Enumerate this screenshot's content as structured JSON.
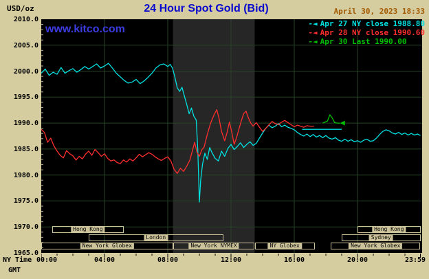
{
  "colors": {
    "background": "#D5CC9F",
    "plot_bg": "#000000",
    "band": "#262626",
    "grid": "#294429",
    "tick_beige": "#B9B08A",
    "session_beige": "#CCC39A",
    "title_blue": "#0A0ACF",
    "date_orange": "#A35A00",
    "watermark_blue": "#3B3BE0",
    "axis_black": "#000000"
  },
  "header": {
    "units_label": "USD/oz",
    "title": "24 Hour Spot Gold (Bid)",
    "datetime": "April 30, 2023 18:33",
    "watermark": "www.kitco.com"
  },
  "legend": [
    {
      "label": "Apr 27 NY close 1988.80",
      "color": "#00E0E0"
    },
    {
      "label": "Apr 28 NY close 1990.60",
      "color": "#FF2E2E"
    },
    {
      "label": "Apr 30 Last 1990.00",
      "color": "#00C000"
    }
  ],
  "axes": {
    "y_ticks": [
      2010,
      2005,
      2000,
      1995,
      1990,
      1985,
      1980,
      1975,
      1970,
      1965
    ],
    "y_tick_labels": [
      "2010.0",
      "2005.0",
      "2000.0",
      "1995.0",
      "1990.0",
      "1985.0",
      "1980.0",
      "1975.0",
      "1970.0",
      "1965.0"
    ],
    "x_grid": [
      4,
      8,
      12,
      16,
      20
    ],
    "x_ticks": [
      {
        "h": 0,
        "label": "00:00"
      },
      {
        "h": 4,
        "label": "04:00"
      },
      {
        "h": 8,
        "label": "08:00"
      },
      {
        "h": 12,
        "label": "12:00"
      },
      {
        "h": 16,
        "label": "16:00"
      },
      {
        "h": 20,
        "label": "20:00"
      },
      {
        "h": 23.98,
        "label": "23:59"
      }
    ]
  },
  "footer": {
    "ny_time_label": "NY Time",
    "gmt_label": "GMT"
  },
  "sessions": {
    "rows": [
      [
        {
          "label": "Hong Kong",
          "start": 0.7,
          "end": 5.2
        },
        {
          "label": "Hong Kong",
          "start": 20.0,
          "end": 23.98
        }
      ],
      [
        {
          "label": "London",
          "start": 3.0,
          "end": 11.5
        },
        {
          "label": "Sydney",
          "start": 19.0,
          "end": 23.98
        }
      ],
      [
        {
          "label": "New York Globex",
          "start": 0.0,
          "end": 8.33
        },
        {
          "label": "New York NYMEX",
          "start": 8.33,
          "end": 13.5
        },
        {
          "label": "NY Globex",
          "start": 13.5,
          "end": 17.3
        },
        {
          "label": "New York Globex",
          "start": 18.3,
          "end": 23.98
        }
      ]
    ]
  },
  "chart_data": {
    "type": "line",
    "title": "24 Hour Spot Gold (Bid)",
    "x_unit": "hours, NY time (00:00-23:59)",
    "y_unit": "USD/oz",
    "x_range": [
      0,
      24
    ],
    "y_range": [
      1965,
      2010
    ],
    "grid": true,
    "legend_position": "top-right",
    "nymex_band": {
      "start": 8.33,
      "end": 13.5
    },
    "closes": {
      "apr27_ny_close": 1988.8,
      "apr28_ny_close": 1990.6,
      "apr30_last": 1990.0
    },
    "series": [
      {
        "id": "apr27",
        "name": "Apr 27",
        "color": "#00E0E0",
        "points": [
          [
            0,
            1999.6
          ],
          [
            0.25,
            2000.4
          ],
          [
            0.5,
            1999.2
          ],
          [
            0.75,
            1999.8
          ],
          [
            1,
            1999.4
          ],
          [
            1.25,
            2000.7
          ],
          [
            1.5,
            1999.6
          ],
          [
            1.75,
            2000.1
          ],
          [
            2,
            2000.5
          ],
          [
            2.25,
            1999.8
          ],
          [
            2.5,
            2000.3
          ],
          [
            2.75,
            2000.9
          ],
          [
            3,
            2000.4
          ],
          [
            3.25,
            2000.9
          ],
          [
            3.5,
            2001.4
          ],
          [
            3.75,
            2000.6
          ],
          [
            4,
            2001.0
          ],
          [
            4.25,
            2001.5
          ],
          [
            4.5,
            2000.6
          ],
          [
            4.75,
            1999.6
          ],
          [
            5,
            1998.9
          ],
          [
            5.25,
            1998.2
          ],
          [
            5.5,
            1997.7
          ],
          [
            5.75,
            1997.9
          ],
          [
            6,
            1998.4
          ],
          [
            6.25,
            1997.6
          ],
          [
            6.5,
            1998.1
          ],
          [
            6.75,
            1998.8
          ],
          [
            7,
            1999.6
          ],
          [
            7.25,
            2000.6
          ],
          [
            7.5,
            2001.2
          ],
          [
            7.75,
            2001.4
          ],
          [
            8,
            2000.9
          ],
          [
            8.15,
            2001.3
          ],
          [
            8.3,
            2000.6
          ],
          [
            8.45,
            1998.9
          ],
          [
            8.6,
            1996.8
          ],
          [
            8.75,
            1996.1
          ],
          [
            8.9,
            1996.9
          ],
          [
            9.05,
            1995.2
          ],
          [
            9.2,
            1993.6
          ],
          [
            9.35,
            1991.8
          ],
          [
            9.5,
            1992.9
          ],
          [
            9.65,
            1991.3
          ],
          [
            9.8,
            1990.6
          ],
          [
            9.9,
            1984.9
          ],
          [
            10,
            1974.8
          ],
          [
            10.08,
            1978.9
          ],
          [
            10.2,
            1982.1
          ],
          [
            10.35,
            1984.2
          ],
          [
            10.5,
            1983.0
          ],
          [
            10.65,
            1985.3
          ],
          [
            10.8,
            1984.3
          ],
          [
            11,
            1983.2
          ],
          [
            11.2,
            1982.7
          ],
          [
            11.4,
            1984.6
          ],
          [
            11.6,
            1983.6
          ],
          [
            11.8,
            1985.1
          ],
          [
            12,
            1985.9
          ],
          [
            12.2,
            1984.9
          ],
          [
            12.4,
            1985.5
          ],
          [
            12.6,
            1986.2
          ],
          [
            12.8,
            1985.3
          ],
          [
            13,
            1985.9
          ],
          [
            13.2,
            1986.4
          ],
          [
            13.4,
            1985.7
          ],
          [
            13.6,
            1986.1
          ],
          [
            13.8,
            1987.1
          ],
          [
            14,
            1988.1
          ],
          [
            14.2,
            1989.0
          ],
          [
            14.4,
            1989.6
          ],
          [
            14.6,
            1989.1
          ],
          [
            14.8,
            1989.4
          ],
          [
            15,
            1989.9
          ],
          [
            15.2,
            1989.3
          ],
          [
            15.4,
            1989.6
          ],
          [
            15.6,
            1989.2
          ],
          [
            15.8,
            1989.0
          ],
          [
            16,
            1988.7
          ],
          [
            16.2,
            1988.2
          ],
          [
            16.4,
            1987.8
          ],
          [
            16.6,
            1987.5
          ],
          [
            16.8,
            1987.9
          ],
          [
            17,
            1987.4
          ],
          [
            17.2,
            1987.8
          ],
          [
            17.4,
            1987.3
          ],
          [
            17.6,
            1987.6
          ],
          [
            17.8,
            1987.2
          ],
          [
            18,
            1987.6
          ],
          [
            18.2,
            1987.1
          ],
          [
            18.4,
            1986.9
          ],
          [
            18.6,
            1987.2
          ],
          [
            18.8,
            1986.7
          ],
          [
            19,
            1986.5
          ],
          [
            19.2,
            1986.9
          ],
          [
            19.4,
            1986.5
          ],
          [
            19.6,
            1986.8
          ],
          [
            19.8,
            1986.4
          ],
          [
            20,
            1986.6
          ],
          [
            20.2,
            1986.3
          ],
          [
            20.4,
            1986.7
          ],
          [
            20.6,
            1986.9
          ],
          [
            20.8,
            1986.5
          ],
          [
            21,
            1986.6
          ],
          [
            21.2,
            1987.1
          ],
          [
            21.4,
            1987.8
          ],
          [
            21.6,
            1988.4
          ],
          [
            21.8,
            1988.7
          ],
          [
            22,
            1988.5
          ],
          [
            22.2,
            1988.1
          ],
          [
            22.4,
            1987.9
          ],
          [
            22.6,
            1988.2
          ],
          [
            22.8,
            1987.8
          ],
          [
            23,
            1988.1
          ],
          [
            23.2,
            1987.7
          ],
          [
            23.4,
            1988.0
          ],
          [
            23.6,
            1987.7
          ],
          [
            23.8,
            1987.9
          ],
          [
            23.98,
            1987.6
          ]
        ]
      },
      {
        "id": "apr28",
        "name": "Apr 28",
        "color": "#FF2E2E",
        "points": [
          [
            0,
            1988.8
          ],
          [
            0.2,
            1988.2
          ],
          [
            0.4,
            1986.3
          ],
          [
            0.6,
            1987.1
          ],
          [
            0.8,
            1985.6
          ],
          [
            1,
            1984.6
          ],
          [
            1.2,
            1983.8
          ],
          [
            1.4,
            1983.3
          ],
          [
            1.6,
            1984.7
          ],
          [
            1.8,
            1984.1
          ],
          [
            2,
            1983.7
          ],
          [
            2.2,
            1982.9
          ],
          [
            2.4,
            1983.6
          ],
          [
            2.6,
            1983.1
          ],
          [
            2.8,
            1984.0
          ],
          [
            3,
            1984.6
          ],
          [
            3.2,
            1983.8
          ],
          [
            3.4,
            1984.9
          ],
          [
            3.6,
            1984.3
          ],
          [
            3.8,
            1983.6
          ],
          [
            4,
            1984.1
          ],
          [
            4.2,
            1983.2
          ],
          [
            4.4,
            1982.7
          ],
          [
            4.6,
            1982.9
          ],
          [
            4.8,
            1982.4
          ],
          [
            5,
            1982.2
          ],
          [
            5.2,
            1982.9
          ],
          [
            5.4,
            1982.5
          ],
          [
            5.6,
            1983.1
          ],
          [
            5.8,
            1982.7
          ],
          [
            6,
            1983.3
          ],
          [
            6.2,
            1984.0
          ],
          [
            6.4,
            1983.5
          ],
          [
            6.6,
            1983.9
          ],
          [
            6.8,
            1984.3
          ],
          [
            7,
            1984.0
          ],
          [
            7.2,
            1983.5
          ],
          [
            7.4,
            1983.1
          ],
          [
            7.6,
            1982.8
          ],
          [
            7.8,
            1983.2
          ],
          [
            8,
            1983.5
          ],
          [
            8.2,
            1982.7
          ],
          [
            8.4,
            1981.1
          ],
          [
            8.6,
            1980.3
          ],
          [
            8.8,
            1981.3
          ],
          [
            9,
            1980.7
          ],
          [
            9.2,
            1981.7
          ],
          [
            9.4,
            1982.9
          ],
          [
            9.55,
            1984.6
          ],
          [
            9.7,
            1986.3
          ],
          [
            9.85,
            1984.4
          ],
          [
            10,
            1983.6
          ],
          [
            10.15,
            1984.8
          ],
          [
            10.3,
            1985.4
          ],
          [
            10.5,
            1987.8
          ],
          [
            10.7,
            1989.9
          ],
          [
            10.9,
            1991.4
          ],
          [
            11.1,
            1992.6
          ],
          [
            11.25,
            1990.8
          ],
          [
            11.4,
            1988.4
          ],
          [
            11.6,
            1986.6
          ],
          [
            11.75,
            1988.2
          ],
          [
            11.9,
            1990.2
          ],
          [
            12.05,
            1988.3
          ],
          [
            12.2,
            1985.9
          ],
          [
            12.35,
            1987.2
          ],
          [
            12.5,
            1988.8
          ],
          [
            12.65,
            1990.4
          ],
          [
            12.8,
            1991.8
          ],
          [
            12.95,
            1992.3
          ],
          [
            13.1,
            1991.0
          ],
          [
            13.25,
            1990.0
          ],
          [
            13.4,
            1989.4
          ],
          [
            13.6,
            1990.1
          ],
          [
            13.8,
            1989.2
          ],
          [
            14,
            1988.4
          ],
          [
            14.2,
            1989.0
          ],
          [
            14.4,
            1989.7
          ],
          [
            14.6,
            1990.3
          ],
          [
            14.8,
            1989.9
          ],
          [
            15,
            1989.7
          ],
          [
            15.2,
            1990.2
          ],
          [
            15.4,
            1990.5
          ],
          [
            15.6,
            1990.1
          ],
          [
            15.8,
            1989.7
          ],
          [
            16,
            1989.3
          ],
          [
            16.2,
            1989.6
          ],
          [
            16.4,
            1989.4
          ],
          [
            16.6,
            1989.2
          ],
          [
            16.8,
            1989.5
          ],
          [
            17,
            1989.4
          ],
          [
            17.25,
            1989.4
          ]
        ]
      },
      {
        "id": "apr27-close-level",
        "name": "Apr 27 close level",
        "color": "#00E0E0",
        "points": [
          [
            16.5,
            1988.8
          ],
          [
            19.0,
            1988.8
          ]
        ]
      },
      {
        "id": "apr30",
        "name": "Apr 30",
        "color": "#00C000",
        "points": [
          [
            17.8,
            1990.0
          ],
          [
            17.95,
            1990.2
          ],
          [
            18.1,
            1990.4
          ],
          [
            18.25,
            1991.6
          ],
          [
            18.4,
            1991.0
          ],
          [
            18.55,
            1990.1
          ],
          [
            18.7,
            1990.0
          ],
          [
            18.9,
            1990.0
          ]
        ]
      }
    ],
    "last_marker": {
      "h": 18.9,
      "v": 1990.0,
      "color": "#00C000"
    }
  }
}
